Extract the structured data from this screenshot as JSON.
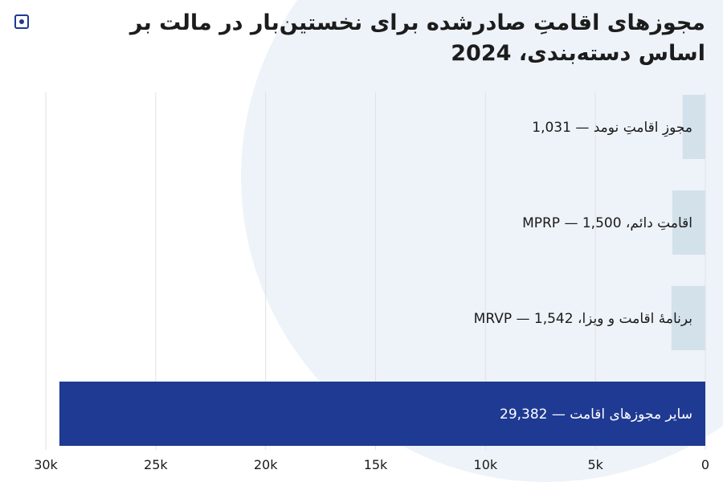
{
  "colors": {
    "primary_bar": "#1f3a93",
    "secondary_bar": "#d3e1ea",
    "grid": "#e2e2e2",
    "text_dark": "#1a1a1a",
    "text_light": "#ffffff"
  },
  "logo": {
    "icon": "logo-icon"
  },
  "chart_data": {
    "type": "bar",
    "orientation": "horizontal",
    "title": "مجوزهای اقامتِ صادرشده برای نخستین‌بار در مالت بر اساس دسته‌بندی، 2024",
    "xlabel": "",
    "ylabel": "",
    "xlim": [
      0,
      30000
    ],
    "x_direction": "right-to-left",
    "grid": true,
    "ticks": [
      {
        "value": 0,
        "label": "0"
      },
      {
        "value": 5000,
        "label": "5k"
      },
      {
        "value": 10000,
        "label": "10k"
      },
      {
        "value": 15000,
        "label": "15k"
      },
      {
        "value": 20000,
        "label": "20k"
      },
      {
        "value": 25000,
        "label": "25k"
      },
      {
        "value": 30000,
        "label": "30k"
      }
    ],
    "bars": [
      {
        "category": "مجوزِ اقامتِ نومد",
        "value": 1031,
        "value_label": "1,031",
        "label": "مجوزِ اقامتِ نومد — 1,031"
      },
      {
        "category": "اقامتِ دائم، MPRP",
        "value": 1500,
        "value_label": "1,500",
        "label": "اقامتِ دائم، MPRP — 1,500"
      },
      {
        "category": "برنامهٔ اقامت و ویزا، MRVP",
        "value": 1542,
        "value_label": "1,542",
        "label": "برنامهٔ اقامت و ویزا، MRVP — 1,542"
      },
      {
        "category": "سایر مجوزهای اقامت",
        "value": 29382,
        "value_label": "29,382",
        "label": "سایر مجوزهای اقامت — 29,382",
        "highlight": true
      }
    ]
  }
}
